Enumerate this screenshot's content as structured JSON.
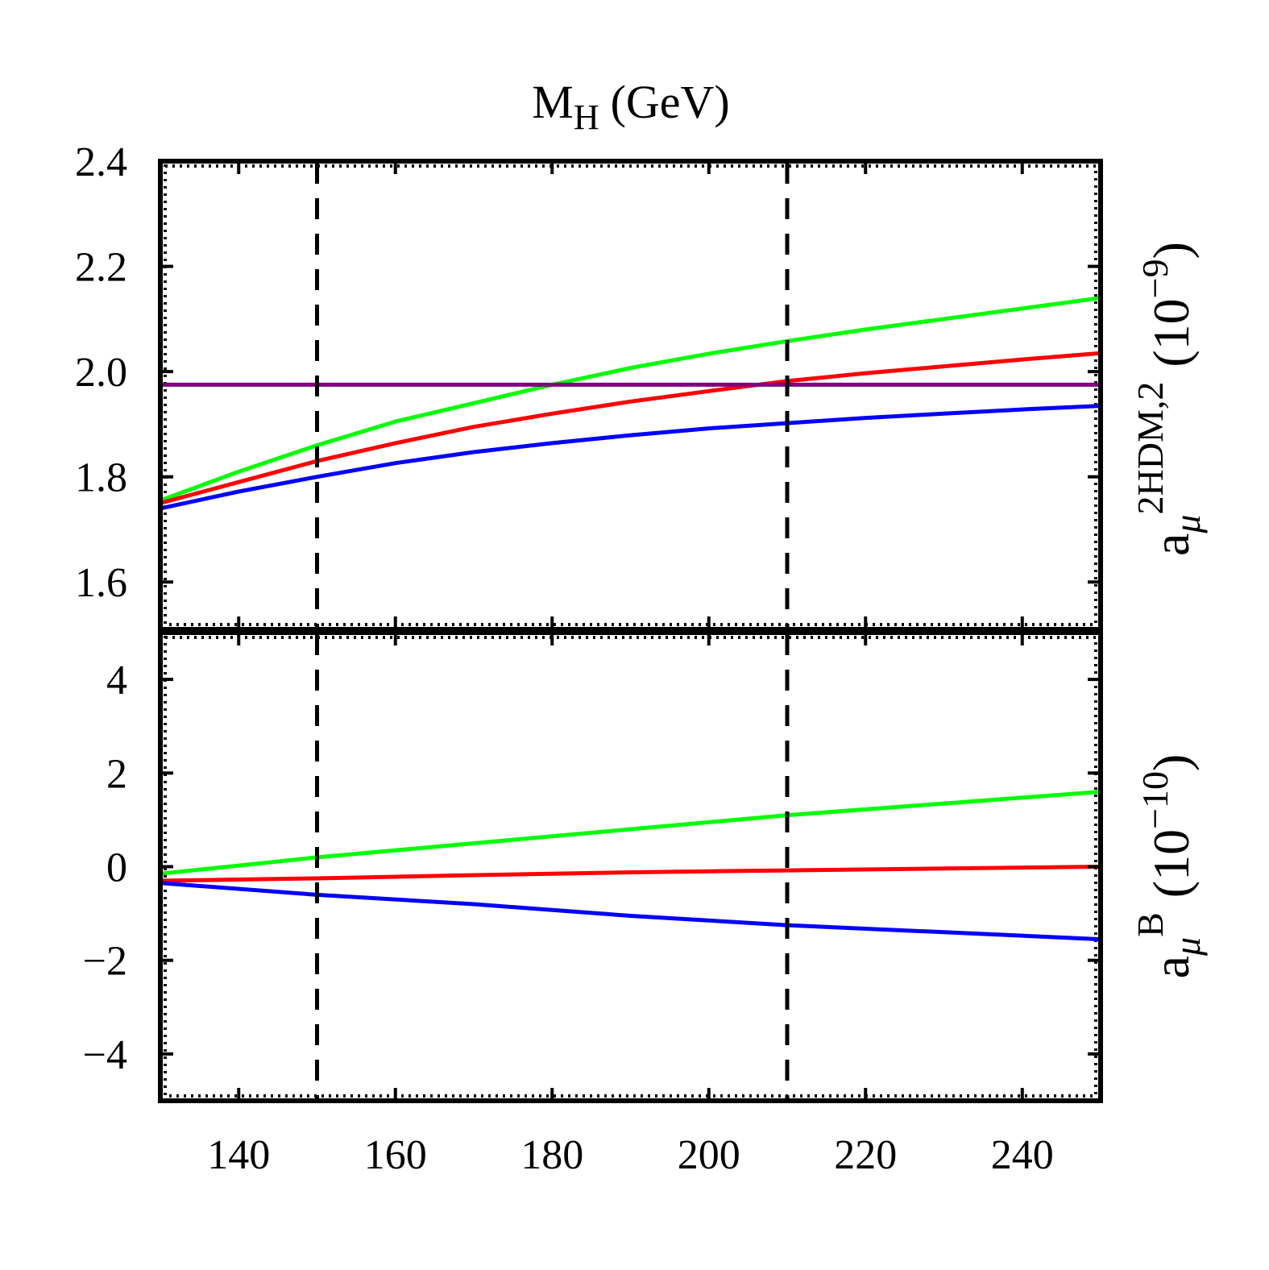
{
  "chart_data": {
    "type": "line",
    "x_title": {
      "main": "M",
      "sub": "H",
      "unit": "(GeV)"
    },
    "xlim": [
      130,
      250
    ],
    "x_ticks": [
      140,
      160,
      180,
      200,
      220,
      240
    ],
    "x_tick_labels": [
      "140",
      "160",
      "180",
      "200",
      "220",
      "240"
    ],
    "vlines": [
      150,
      210
    ],
    "colors": {
      "green": "#00ff00",
      "red": "#ff0000",
      "blue": "#0000ff",
      "purple": "#800080",
      "dashed": "#000000"
    },
    "panels": [
      {
        "id": "top",
        "ylim": [
          1.51,
          2.4
        ],
        "y_ticks": [
          1.6,
          1.8,
          2.0,
          2.2,
          2.4
        ],
        "y_tick_labels": [
          "1.6",
          "1.8",
          "2.0",
          "2.2",
          "2.4"
        ],
        "ylabel": {
          "base": "a",
          "sub": "μ",
          "sup": "2HDM,2",
          "unit_open": "(10",
          "unit_exp": "−9",
          "unit_close": ")"
        },
        "series": [
          {
            "name": "green",
            "color": "#00ff00",
            "x": [
              130,
              140,
              150,
              160,
              170,
              180,
              190,
              200,
              210,
              220,
              230,
              240,
              250
            ],
            "y": [
              1.755,
              1.81,
              1.86,
              1.905,
              1.94,
              1.975,
              2.007,
              2.034,
              2.058,
              2.08,
              2.1,
              2.12,
              2.14
            ]
          },
          {
            "name": "red",
            "color": "#ff0000",
            "x": [
              130,
              140,
              150,
              160,
              170,
              180,
              190,
              200,
              210,
              220,
              230,
              240,
              250
            ],
            "y": [
              1.75,
              1.79,
              1.83,
              1.864,
              1.895,
              1.92,
              1.943,
              1.963,
              1.982,
              1.997,
              2.01,
              2.023,
              2.035
            ]
          },
          {
            "name": "blue",
            "color": "#0000ff",
            "x": [
              130,
              140,
              150,
              160,
              170,
              180,
              190,
              200,
              210,
              220,
              230,
              240,
              250
            ],
            "y": [
              1.74,
              1.772,
              1.8,
              1.826,
              1.847,
              1.864,
              1.879,
              1.892,
              1.902,
              1.912,
              1.92,
              1.928,
              1.935
            ]
          },
          {
            "name": "purple",
            "color": "#800080",
            "x": [
              130,
              250
            ],
            "y": [
              1.975,
              1.975
            ]
          }
        ]
      },
      {
        "id": "bottom",
        "ylim": [
          -5,
          5
        ],
        "y_ticks": [
          -4,
          -2,
          0,
          2,
          4
        ],
        "y_tick_labels": [
          "−4",
          "−2",
          "0",
          "2",
          "4"
        ],
        "ylabel": {
          "base": "a",
          "sub": "μ",
          "sup": "B",
          "unit_open": "(10",
          "unit_exp": "−10",
          "unit_close": ")"
        },
        "series": [
          {
            "name": "green",
            "color": "#00ff00",
            "x": [
              130,
              150,
              170,
              190,
              210,
              230,
              250
            ],
            "y": [
              -0.15,
              0.2,
              0.5,
              0.8,
              1.1,
              1.35,
              1.6
            ]
          },
          {
            "name": "red",
            "color": "#ff0000",
            "x": [
              130,
              150,
              170,
              190,
              210,
              230,
              250
            ],
            "y": [
              -0.3,
              -0.25,
              -0.18,
              -0.12,
              -0.08,
              -0.04,
              0.0
            ]
          },
          {
            "name": "blue",
            "color": "#0000ff",
            "x": [
              130,
              150,
              170,
              190,
              210,
              230,
              250
            ],
            "y": [
              -0.35,
              -0.6,
              -0.8,
              -1.05,
              -1.25,
              -1.4,
              -1.55
            ]
          }
        ]
      }
    ]
  }
}
